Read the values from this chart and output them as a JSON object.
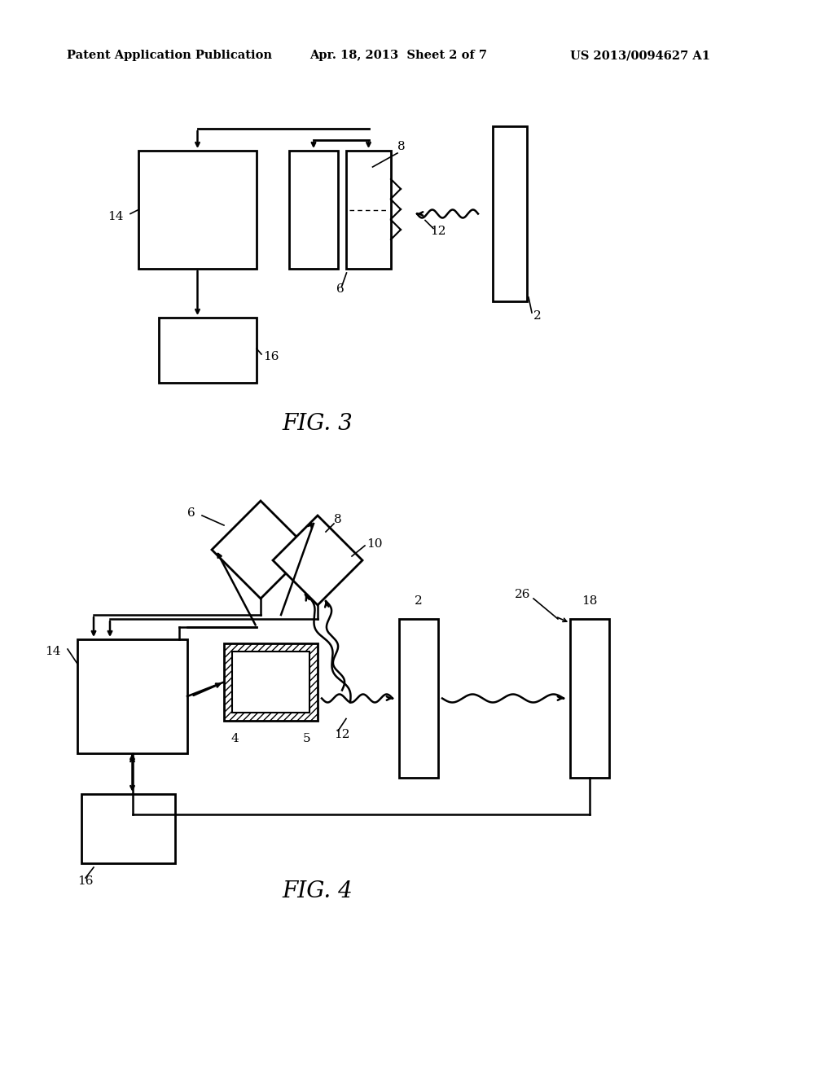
{
  "background_color": "#ffffff",
  "header_left": "Patent Application Publication",
  "header_center": "Apr. 18, 2013  Sheet 2 of 7",
  "header_right": "US 2013/0094627 A1",
  "fig3_label": "FIG. 3",
  "fig4_label": "FIG. 4",
  "line_color": "#000000",
  "lw": 1.8,
  "blw": 2.0
}
